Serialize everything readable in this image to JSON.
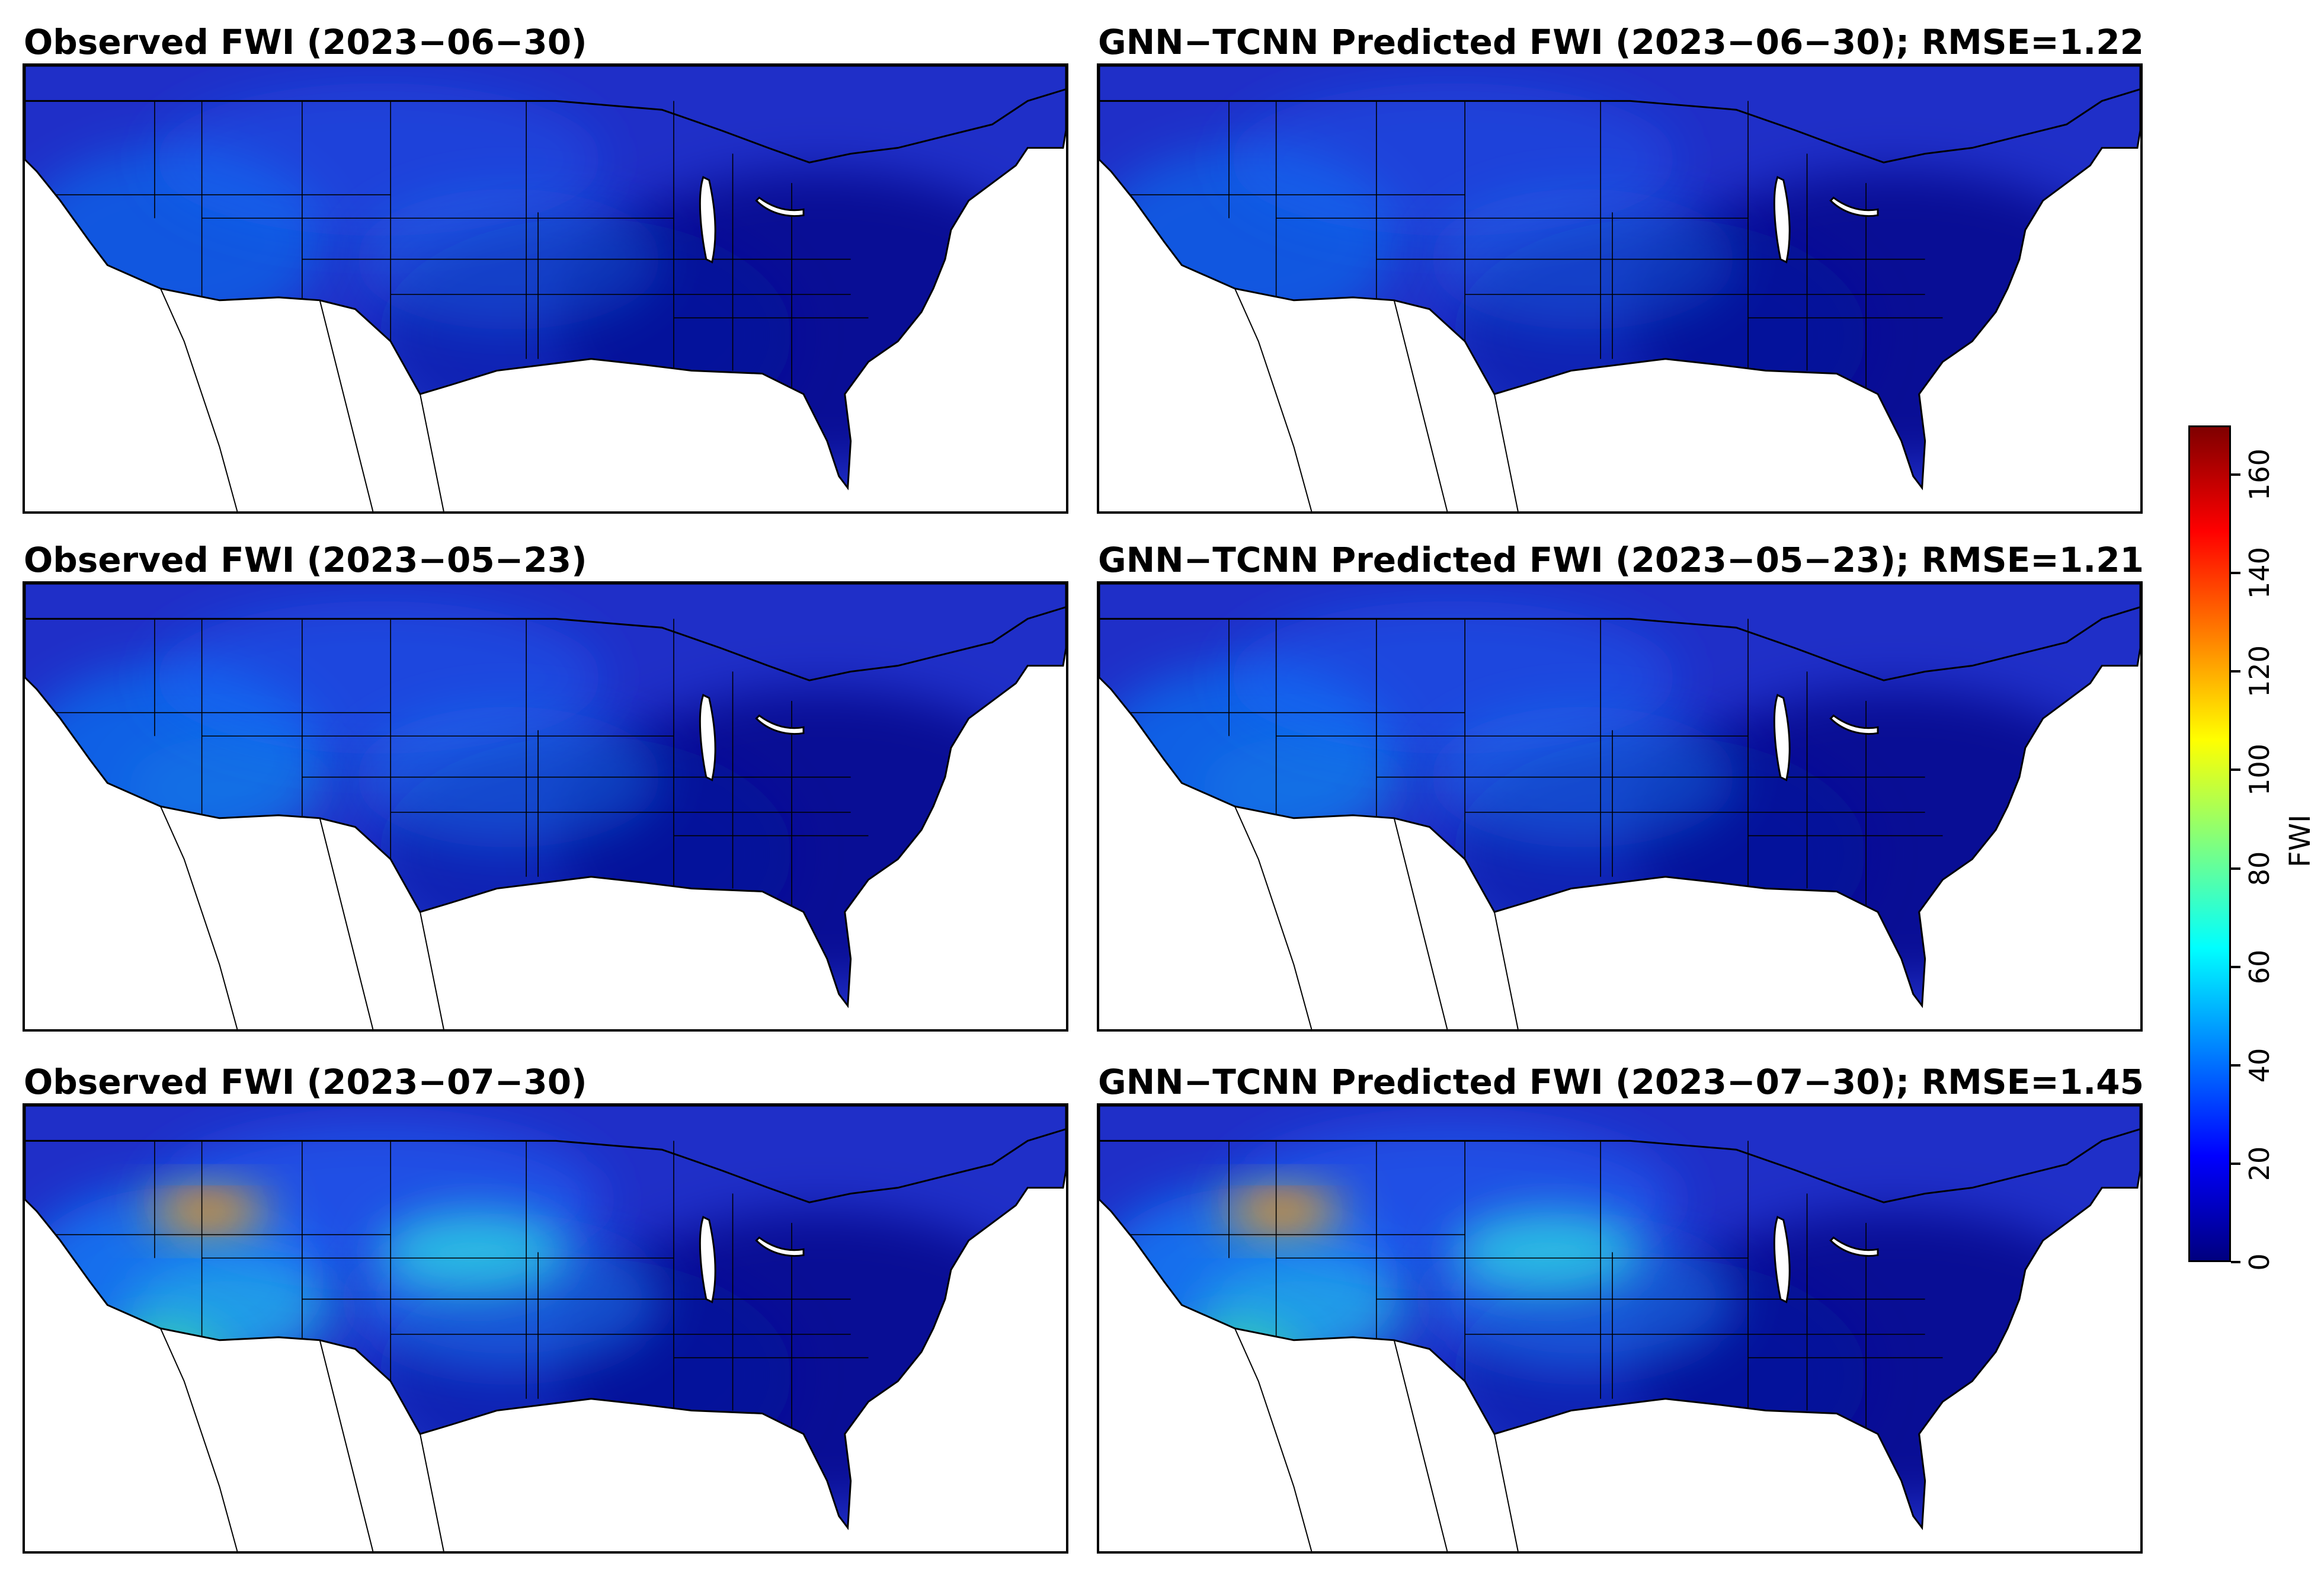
{
  "panels": [
    {
      "title": "Observed FWI (2023−06−30)",
      "kind": "observed",
      "intensity": 0.15
    },
    {
      "title": "GNN−TCNN Predicted FWI (2023−06−30); RMSE=1.22",
      "kind": "predicted",
      "intensity": 0.15
    },
    {
      "title": "Observed FWI (2023−05−23)",
      "kind": "observed",
      "intensity": 0.3
    },
    {
      "title": "GNN−TCNN Predicted FWI (2023−05−23); RMSE=1.21",
      "kind": "predicted",
      "intensity": 0.3
    },
    {
      "title": "Observed FWI (2023−07−30)",
      "kind": "observed",
      "intensity": 0.55
    },
    {
      "title": "GNN−TCNN Predicted FWI (2023−07−30); RMSE=1.45",
      "kind": "predicted",
      "intensity": 0.55
    }
  ],
  "colorbar": {
    "label": "FWI",
    "min": 0,
    "max": 170,
    "ticks": [
      "0",
      "20",
      "40",
      "60",
      "80",
      "100",
      "120",
      "140",
      "160"
    ],
    "tick_values": [
      0,
      20,
      40,
      60,
      80,
      100,
      120,
      140,
      160
    ],
    "colormap": "jet",
    "colors": [
      "#00007f",
      "#0000ff",
      "#007fff",
      "#00ffff",
      "#7fff7f",
      "#ffff00",
      "#ff7f00",
      "#ff0000",
      "#7f0000"
    ]
  },
  "map": {
    "land_base_color": "#1f2fc8",
    "ocean_color": "#ffffff"
  }
}
